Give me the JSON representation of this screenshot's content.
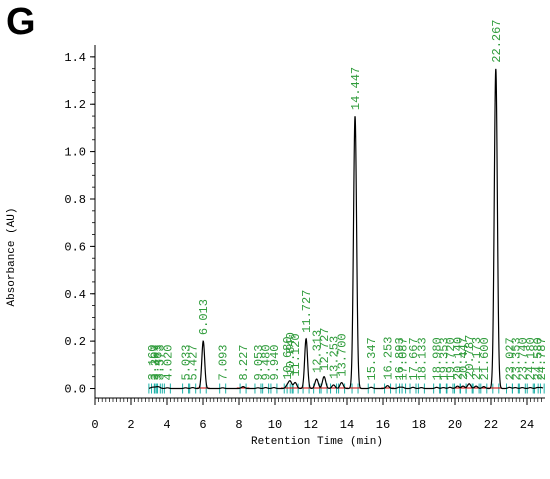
{
  "panel_label": "G",
  "chart_data": {
    "type": "line",
    "xlabel": "Retention Time (min)",
    "ylabel": "Absorbance (AU)",
    "xlim": [
      0,
      25
    ],
    "ylim": [
      -0.04,
      1.45
    ],
    "x_ticks": [
      0,
      2,
      4,
      6,
      8,
      10,
      12,
      14,
      16,
      18,
      20,
      22,
      24
    ],
    "y_ticks": [
      "0.0",
      "0.2",
      "0.4",
      "0.6",
      "0.8",
      "1.0",
      "1.2",
      "1.4"
    ],
    "grid": false,
    "line_color": "#000000",
    "label_color": "#2e9b3a",
    "marker_color": "#20b2aa",
    "baseline_color": "#cc0000",
    "peaks": [
      {
        "t": 3.16,
        "h": 0.004,
        "label": "3.160"
      },
      {
        "t": 3.307,
        "h": 0.004,
        "label": "3.307"
      },
      {
        "t": 3.463,
        "h": 0.005,
        "label": "3.463"
      },
      {
        "t": 3.573,
        "h": 0.004,
        "label": "3.573"
      },
      {
        "t": 4.02,
        "h": 0.003,
        "label": "4.020"
      },
      {
        "t": 5.033,
        "h": 0.003,
        "label": "5.033"
      },
      {
        "t": 5.427,
        "h": 0.004,
        "label": "5.427"
      },
      {
        "t": 6.013,
        "h": 0.2,
        "label": "6.013"
      },
      {
        "t": 7.093,
        "h": 0.003,
        "label": "7.093"
      },
      {
        "t": 8.227,
        "h": 0.008,
        "label": "8.227"
      },
      {
        "t": 9.053,
        "h": 0.003,
        "label": "9.053"
      },
      {
        "t": 9.48,
        "h": 0.004,
        "label": "9.480"
      },
      {
        "t": 9.94,
        "h": 0.004,
        "label": "9.940"
      },
      {
        "t": 10.68,
        "h": 0.012,
        "label": "10.680"
      },
      {
        "t": 10.84,
        "h": 0.03,
        "label": "10.840"
      },
      {
        "t": 11.12,
        "h": 0.025,
        "label": "11.120"
      },
      {
        "t": 11.727,
        "h": 0.21,
        "label": "11.727"
      },
      {
        "t": 12.313,
        "h": 0.04,
        "label": "12.313"
      },
      {
        "t": 12.727,
        "h": 0.05,
        "label": "12.727"
      },
      {
        "t": 13.253,
        "h": 0.015,
        "label": "13.253"
      },
      {
        "t": 13.7,
        "h": 0.025,
        "label": "13.700"
      },
      {
        "t": 14.447,
        "h": 1.15,
        "label": "14.447"
      },
      {
        "t": 15.347,
        "h": 0.005,
        "label": "15.347"
      },
      {
        "t": 16.253,
        "h": 0.012,
        "label": "16.253"
      },
      {
        "t": 16.893,
        "h": 0.005,
        "label": "16.893"
      },
      {
        "t": 17.087,
        "h": 0.005,
        "label": "17.087"
      },
      {
        "t": 17.667,
        "h": 0.005,
        "label": "17.667"
      },
      {
        "t": 18.133,
        "h": 0.004,
        "label": "18.133"
      },
      {
        "t": 18.98,
        "h": 0.005,
        "label": "18.980"
      },
      {
        "t": 19.353,
        "h": 0.004,
        "label": "19.353"
      },
      {
        "t": 19.72,
        "h": 0.005,
        "label": "19.720"
      },
      {
        "t": 20.14,
        "h": 0.01,
        "label": "20.140"
      },
      {
        "t": 20.447,
        "h": 0.01,
        "label": "20.447"
      },
      {
        "t": 20.787,
        "h": 0.02,
        "label": "20.787"
      },
      {
        "t": 21.173,
        "h": 0.01,
        "label": "21.173"
      },
      {
        "t": 21.6,
        "h": 0.008,
        "label": "21.600"
      },
      {
        "t": 22.267,
        "h": 1.35,
        "label": "22.267"
      },
      {
        "t": 23.027,
        "h": 0.005,
        "label": "23.027"
      },
      {
        "t": 23.353,
        "h": 0.004,
        "label": "23.353"
      },
      {
        "t": 23.74,
        "h": 0.004,
        "label": "23.740"
      },
      {
        "t": 24.18,
        "h": 0.004,
        "label": "24.180"
      },
      {
        "t": 24.58,
        "h": 0.004,
        "label": "24.580"
      },
      {
        "t": 24.787,
        "h": 0.004,
        "label": "24.787"
      }
    ]
  }
}
